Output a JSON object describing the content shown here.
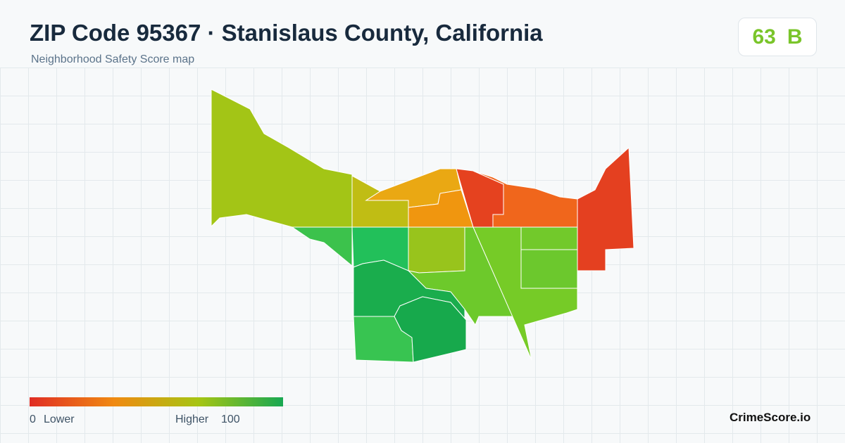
{
  "header": {
    "title": "ZIP Code 95367 · Stanislaus County, California",
    "subtitle": "Neighborhood Safety Score map"
  },
  "score": {
    "value": "63",
    "grade": "B"
  },
  "legend": {
    "min": "0",
    "min_label": "Lower",
    "max_label": "Higher",
    "max": "100"
  },
  "brand": "CrimeScore.io"
}
